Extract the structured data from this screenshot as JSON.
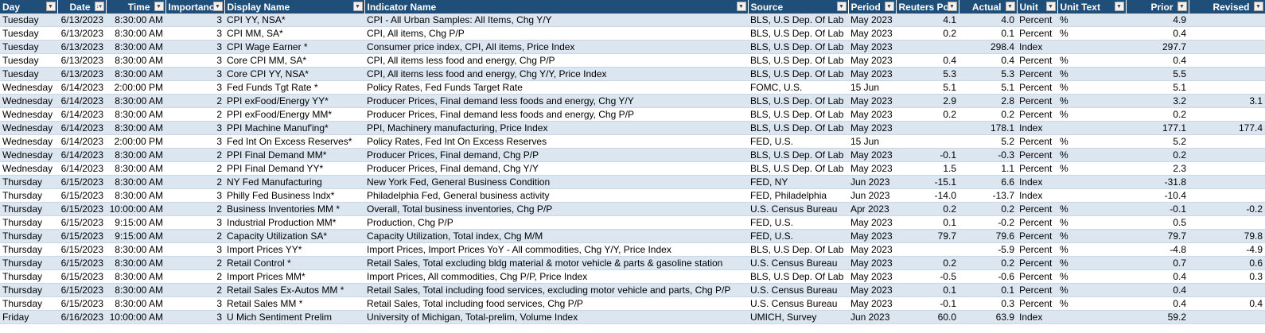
{
  "columns": [
    {
      "key": "day",
      "label": "Day",
      "align": "left"
    },
    {
      "key": "date",
      "label": "Date",
      "align": "right"
    },
    {
      "key": "time",
      "label": "Time",
      "align": "right"
    },
    {
      "key": "importance",
      "label": "Importance",
      "align": "right"
    },
    {
      "key": "display",
      "label": "Display Name",
      "align": "left"
    },
    {
      "key": "indicator",
      "label": "Indicator Name",
      "align": "left"
    },
    {
      "key": "source",
      "label": "Source",
      "align": "left"
    },
    {
      "key": "period",
      "label": "Period",
      "align": "left"
    },
    {
      "key": "poll",
      "label": "Reuters Poll",
      "align": "right"
    },
    {
      "key": "actual",
      "label": "Actual",
      "align": "right"
    },
    {
      "key": "unit",
      "label": "Unit",
      "align": "left"
    },
    {
      "key": "unittext",
      "label": "Unit Text",
      "align": "left"
    },
    {
      "key": "prior",
      "label": "Prior",
      "align": "right"
    },
    {
      "key": "revised",
      "label": "Revised",
      "align": "right"
    }
  ],
  "rows": [
    [
      "Tuesday",
      "6/13/2023",
      "8:30:00 AM",
      "3",
      "CPI YY, NSA*",
      "CPI - All Urban Samples: All Items, Chg Y/Y",
      "BLS, U.S Dep. Of Lab",
      "May 2023",
      "4.1",
      "4.0",
      "Percent",
      "%",
      "4.9",
      ""
    ],
    [
      "Tuesday",
      "6/13/2023",
      "8:30:00 AM",
      "3",
      "CPI MM, SA*",
      "CPI, All items, Chg P/P",
      "BLS, U.S Dep. Of Lab",
      "May 2023",
      "0.2",
      "0.1",
      "Percent",
      "%",
      "0.4",
      ""
    ],
    [
      "Tuesday",
      "6/13/2023",
      "8:30:00 AM",
      "3",
      "CPI Wage Earner *",
      "Consumer price index, CPI, All items, Price Index",
      "BLS, U.S Dep. Of Lab",
      "May 2023",
      "",
      "298.4",
      "Index",
      "",
      "297.7",
      ""
    ],
    [
      "Tuesday",
      "6/13/2023",
      "8:30:00 AM",
      "3",
      "Core CPI MM, SA*",
      "CPI, All items less food and energy, Chg P/P",
      "BLS, U.S Dep. Of Lab",
      "May 2023",
      "0.4",
      "0.4",
      "Percent",
      "%",
      "0.4",
      ""
    ],
    [
      "Tuesday",
      "6/13/2023",
      "8:30:00 AM",
      "3",
      "Core CPI YY, NSA*",
      "CPI, All items less food and energy, Chg Y/Y, Price Index",
      "BLS, U.S Dep. Of Lab",
      "May 2023",
      "5.3",
      "5.3",
      "Percent",
      "%",
      "5.5",
      ""
    ],
    [
      "Wednesday",
      "6/14/2023",
      "2:00:00 PM",
      "3",
      "Fed Funds Tgt Rate *",
      "Policy Rates, Fed Funds Target Rate",
      "FOMC, U.S.",
      "15 Jun",
      "5.1",
      "5.1",
      "Percent",
      "%",
      "5.1",
      ""
    ],
    [
      "Wednesday",
      "6/14/2023",
      "8:30:00 AM",
      "2",
      "PPI exFood/Energy YY*",
      "Producer Prices, Final demand less foods and energy, Chg Y/Y",
      "BLS, U.S Dep. Of Lab",
      "May 2023",
      "2.9",
      "2.8",
      "Percent",
      "%",
      "3.2",
      "3.1"
    ],
    [
      "Wednesday",
      "6/14/2023",
      "8:30:00 AM",
      "2",
      "PPI exFood/Energy MM*",
      "Producer Prices, Final demand less foods and energy, Chg P/P",
      "BLS, U.S Dep. Of Lab",
      "May 2023",
      "0.2",
      "0.2",
      "Percent",
      "%",
      "0.2",
      ""
    ],
    [
      "Wednesday",
      "6/14/2023",
      "8:30:00 AM",
      "3",
      "PPI Machine Manuf'ing*",
      "PPI, Machinery manufacturing, Price Index",
      "BLS, U.S Dep. Of Lab",
      "May 2023",
      "",
      "178.1",
      "Index",
      "",
      "177.1",
      "177.4"
    ],
    [
      "Wednesday",
      "6/14/2023",
      "2:00:00 PM",
      "3",
      "Fed Int On Excess Reserves*",
      "Policy Rates, Fed Int On Excess Reserves",
      "FED, U.S.",
      "15 Jun",
      "",
      "5.2",
      "Percent",
      "%",
      "5.2",
      ""
    ],
    [
      "Wednesday",
      "6/14/2023",
      "8:30:00 AM",
      "2",
      "PPI Final Demand MM*",
      "Producer Prices, Final demand, Chg P/P",
      "BLS, U.S Dep. Of Lab",
      "May 2023",
      "-0.1",
      "-0.3",
      "Percent",
      "%",
      "0.2",
      ""
    ],
    [
      "Wednesday",
      "6/14/2023",
      "8:30:00 AM",
      "2",
      "PPI Final Demand YY*",
      "Producer Prices, Final demand, Chg Y/Y",
      "BLS, U.S Dep. Of Lab",
      "May 2023",
      "1.5",
      "1.1",
      "Percent",
      "%",
      "2.3",
      ""
    ],
    [
      "Thursday",
      "6/15/2023",
      "8:30:00 AM",
      "2",
      "NY Fed Manufacturing",
      "New York Fed, General Business Condition",
      "FED, NY",
      "Jun 2023",
      "-15.1",
      "6.6",
      "Index",
      "",
      "-31.8",
      ""
    ],
    [
      "Thursday",
      "6/15/2023",
      "8:30:00 AM",
      "3",
      "Philly Fed Business Indx*",
      "Philadelphia Fed, General business activity",
      "FED, Philadelphia",
      "Jun 2023",
      "-14.0",
      "-13.7",
      "Index",
      "",
      "-10.4",
      ""
    ],
    [
      "Thursday",
      "6/15/2023",
      "10:00:00 AM",
      "2",
      "Business Inventories MM *",
      "Overall, Total business inventories, Chg P/P",
      "U.S. Census Bureau",
      "Apr 2023",
      "0.2",
      "0.2",
      "Percent",
      "%",
      "-0.1",
      "-0.2"
    ],
    [
      "Thursday",
      "6/15/2023",
      "9:15:00 AM",
      "3",
      "Industrial Production MM*",
      "Production, Chg P/P",
      "FED, U.S.",
      "May 2023",
      "0.1",
      "-0.2",
      "Percent",
      "%",
      "0.5",
      ""
    ],
    [
      "Thursday",
      "6/15/2023",
      "9:15:00 AM",
      "2",
      "Capacity Utilization SA*",
      "Capacity Utilization, Total index, Chg M/M",
      "FED, U.S.",
      "May 2023",
      "79.7",
      "79.6",
      "Percent",
      "%",
      "79.7",
      "79.8"
    ],
    [
      "Thursday",
      "6/15/2023",
      "8:30:00 AM",
      "3",
      "Import Prices YY*",
      "Import Prices, Import Prices YoY - All commodities, Chg Y/Y, Price Index",
      "BLS, U.S Dep. Of Lab",
      "May 2023",
      "",
      "-5.9",
      "Percent",
      "%",
      "-4.8",
      "-4.9"
    ],
    [
      "Thursday",
      "6/15/2023",
      "8:30:00 AM",
      "2",
      "Retail Control *",
      "Retail Sales, Total excluding bldg material & motor vehicle & parts & gasoline station",
      "U.S. Census Bureau",
      "May 2023",
      "0.2",
      "0.2",
      "Percent",
      "%",
      "0.7",
      "0.6"
    ],
    [
      "Thursday",
      "6/15/2023",
      "8:30:00 AM",
      "2",
      "Import Prices MM*",
      "Import Prices, All commodities, Chg P/P, Price Index",
      "BLS, U.S Dep. Of Lab",
      "May 2023",
      "-0.5",
      "-0.6",
      "Percent",
      "%",
      "0.4",
      "0.3"
    ],
    [
      "Thursday",
      "6/15/2023",
      "8:30:00 AM",
      "2",
      "Retail Sales Ex-Autos MM *",
      "Retail Sales, Total including food services, excluding motor vehicle and parts, Chg P/P",
      "U.S. Census Bureau",
      "May 2023",
      "0.1",
      "0.1",
      "Percent",
      "%",
      "0.4",
      ""
    ],
    [
      "Thursday",
      "6/15/2023",
      "8:30:00 AM",
      "3",
      "Retail Sales MM *",
      "Retail Sales, Total including food services, Chg P/P",
      "U.S. Census Bureau",
      "May 2023",
      "-0.1",
      "0.3",
      "Percent",
      "%",
      "0.4",
      "0.4"
    ],
    [
      "Friday",
      "6/16/2023",
      "10:00:00 AM",
      "3",
      "U Mich Sentiment Prelim",
      "University of Michigan, Total-prelim, Volume Index",
      "UMICH, Survey",
      "Jun 2023",
      "60.0",
      "63.9",
      "Index",
      "",
      "59.2",
      ""
    ]
  ],
  "icons": {
    "filter": "filter-dropdown-icon",
    "sort": "sort-ascending-filter-icon"
  },
  "colors": {
    "header_bg": "#1f4e78",
    "band": "#dce6f1",
    "row": "#ffffff"
  }
}
